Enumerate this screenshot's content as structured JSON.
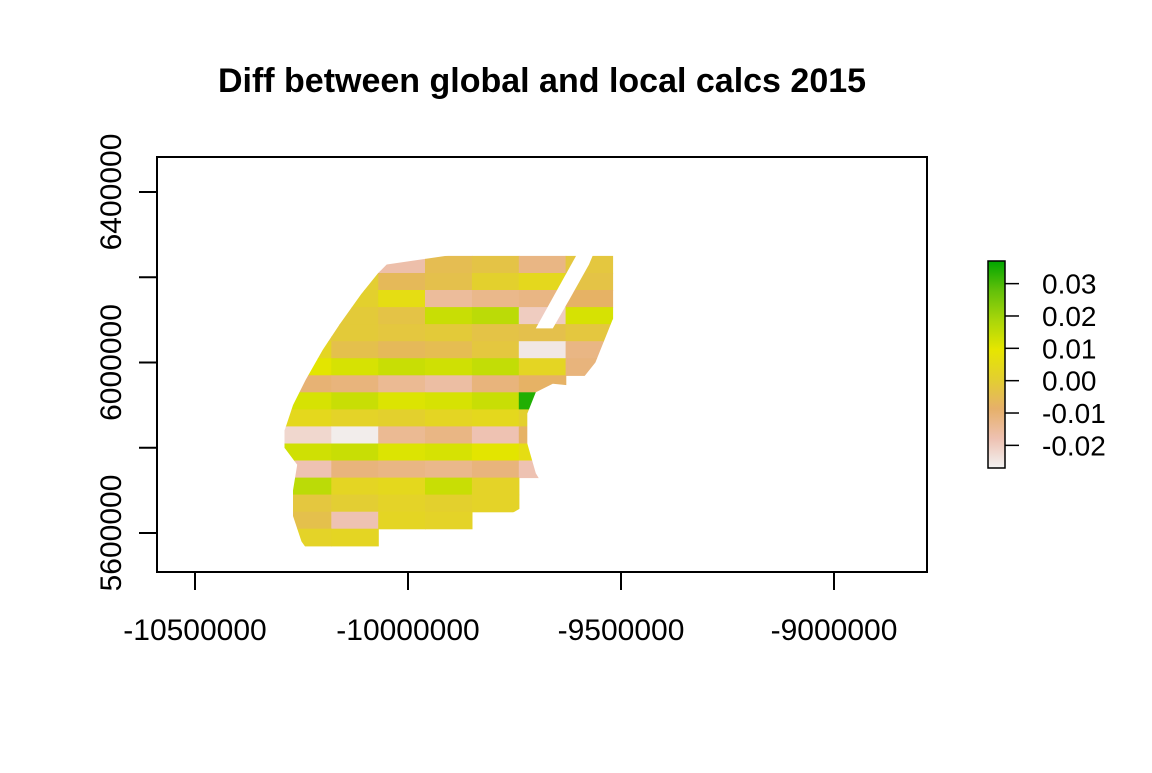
{
  "chart_data": {
    "type": "heatmap",
    "title": "Diff between global and local calcs 2015",
    "xlabel": "",
    "ylabel": "",
    "xlim": [
      -10590000,
      -8780000
    ],
    "ylim": [
      5530000,
      6500000
    ],
    "x_ticks": [
      -10500000,
      -10000000,
      -9500000,
      -9000000
    ],
    "x_tick_labels": [
      "-10500000",
      "-10000000",
      "-9500000",
      "-9000000"
    ],
    "y_ticks": [
      5600000,
      5800000,
      6000000,
      6200000,
      6400000
    ],
    "y_tick_labels": [
      "5600000",
      "",
      "6000000",
      "",
      "6400000"
    ],
    "grid": false,
    "legend": {
      "placement": "right",
      "min": -0.027,
      "max": 0.037,
      "ticks": [
        0.03,
        0.02,
        0.01,
        0.0,
        -0.01,
        -0.02
      ],
      "tick_labels": [
        "0.03",
        "0.02",
        "0.01",
        "0.00",
        "-0.01",
        "-0.02"
      ],
      "colors": [
        "#f2f2f2",
        "#eec1b1",
        "#e6b06a",
        "#e3cf30",
        "#e6e600",
        "#a9d60a",
        "#63c00a",
        "#00a600"
      ]
    },
    "cell_width": 110000,
    "cell_height": 40000,
    "cells": [
      {
        "x": -10070000,
        "y": 6210000,
        "v": -0.017
      },
      {
        "x": -9960000,
        "y": 6210000,
        "v": -0.005
      },
      {
        "x": -9850000,
        "y": 6210000,
        "v": -0.003
      },
      {
        "x": -9740000,
        "y": 6210000,
        "v": -0.012
      },
      {
        "x": -9630000,
        "y": 6210000,
        "v": -0.002
      },
      {
        "x": -10180000,
        "y": 6170000,
        "v": 0.0
      },
      {
        "x": -10070000,
        "y": 6170000,
        "v": -0.006
      },
      {
        "x": -9960000,
        "y": 6170000,
        "v": -0.004
      },
      {
        "x": -9850000,
        "y": 6170000,
        "v": 0.001
      },
      {
        "x": -9740000,
        "y": 6170000,
        "v": 0.004
      },
      {
        "x": -9630000,
        "y": 6170000,
        "v": -0.003
      },
      {
        "x": -10180000,
        "y": 6130000,
        "v": 0.001
      },
      {
        "x": -10070000,
        "y": 6130000,
        "v": 0.006
      },
      {
        "x": -9960000,
        "y": 6130000,
        "v": -0.015
      },
      {
        "x": -9850000,
        "y": 6130000,
        "v": -0.013
      },
      {
        "x": -9740000,
        "y": 6130000,
        "v": -0.012
      },
      {
        "x": -9630000,
        "y": 6130000,
        "v": -0.008
      },
      {
        "x": -10290000,
        "y": 6090000,
        "v": 0.002
      },
      {
        "x": -10180000,
        "y": 6090000,
        "v": -0.001
      },
      {
        "x": -10070000,
        "y": 6090000,
        "v": -0.003
      },
      {
        "x": -9960000,
        "y": 6090000,
        "v": 0.014
      },
      {
        "x": -9850000,
        "y": 6090000,
        "v": 0.016
      },
      {
        "x": -9740000,
        "y": 6090000,
        "v": -0.02
      },
      {
        "x": -9630000,
        "y": 6090000,
        "v": 0.012
      },
      {
        "x": -10290000,
        "y": 6050000,
        "v": -0.002
      },
      {
        "x": -10180000,
        "y": 6050000,
        "v": -0.001
      },
      {
        "x": -10070000,
        "y": 6050000,
        "v": -0.002
      },
      {
        "x": -9960000,
        "y": 6050000,
        "v": -0.001
      },
      {
        "x": -9850000,
        "y": 6050000,
        "v": -0.003
      },
      {
        "x": -9740000,
        "y": 6050000,
        "v": -0.004
      },
      {
        "x": -9630000,
        "y": 6050000,
        "v": -0.002
      },
      {
        "x": -10290000,
        "y": 6010000,
        "v": 0.003
      },
      {
        "x": -10180000,
        "y": 6010000,
        "v": -0.004
      },
      {
        "x": -10070000,
        "y": 6010000,
        "v": -0.006
      },
      {
        "x": -9960000,
        "y": 6010000,
        "v": -0.005
      },
      {
        "x": -9850000,
        "y": 6010000,
        "v": -0.002
      },
      {
        "x": -9740000,
        "y": 6010000,
        "v": -0.025
      },
      {
        "x": -9630000,
        "y": 6010000,
        "v": -0.012
      },
      {
        "x": -10400000,
        "y": 5970000,
        "v": 0.001
      },
      {
        "x": -10290000,
        "y": 5970000,
        "v": 0.01
      },
      {
        "x": -10180000,
        "y": 5970000,
        "v": 0.012
      },
      {
        "x": -10070000,
        "y": 5970000,
        "v": 0.014
      },
      {
        "x": -9960000,
        "y": 5970000,
        "v": 0.013
      },
      {
        "x": -9850000,
        "y": 5970000,
        "v": 0.015
      },
      {
        "x": -9740000,
        "y": 5970000,
        "v": 0.003
      },
      {
        "x": -9630000,
        "y": 5970000,
        "v": -0.011
      },
      {
        "x": -10400000,
        "y": 5930000,
        "v": -0.001
      },
      {
        "x": -10290000,
        "y": 5930000,
        "v": -0.01
      },
      {
        "x": -10180000,
        "y": 5930000,
        "v": -0.011
      },
      {
        "x": -10070000,
        "y": 5930000,
        "v": -0.014
      },
      {
        "x": -9960000,
        "y": 5930000,
        "v": -0.016
      },
      {
        "x": -9850000,
        "y": 5930000,
        "v": -0.011
      },
      {
        "x": -9740000,
        "y": 5930000,
        "v": -0.008
      },
      {
        "x": -10400000,
        "y": 5890000,
        "v": 0.004
      },
      {
        "x": -10290000,
        "y": 5890000,
        "v": 0.012
      },
      {
        "x": -10180000,
        "y": 5890000,
        "v": 0.014
      },
      {
        "x": -10070000,
        "y": 5890000,
        "v": 0.011
      },
      {
        "x": -9960000,
        "y": 5890000,
        "v": 0.012
      },
      {
        "x": -9850000,
        "y": 5890000,
        "v": 0.014
      },
      {
        "x": -9740000,
        "y": 5890000,
        "v": 0.034
      },
      {
        "x": -10400000,
        "y": 5850000,
        "v": 0.003
      },
      {
        "x": -10290000,
        "y": 5850000,
        "v": 0.004
      },
      {
        "x": -10180000,
        "y": 5850000,
        "v": 0.002
      },
      {
        "x": -10070000,
        "y": 5850000,
        "v": 0.001
      },
      {
        "x": -9960000,
        "y": 5850000,
        "v": 0.003
      },
      {
        "x": -9850000,
        "y": 5850000,
        "v": 0.004
      },
      {
        "x": -9740000,
        "y": 5850000,
        "v": 0.001
      },
      {
        "x": -10400000,
        "y": 5810000,
        "v": -0.02
      },
      {
        "x": -10290000,
        "y": 5810000,
        "v": -0.022
      },
      {
        "x": -10180000,
        "y": 5810000,
        "v": -0.026
      },
      {
        "x": -10070000,
        "y": 5810000,
        "v": -0.014
      },
      {
        "x": -9960000,
        "y": 5810000,
        "v": -0.012
      },
      {
        "x": -9850000,
        "y": 5810000,
        "v": -0.018
      },
      {
        "x": -9740000,
        "y": 5810000,
        "v": -0.008
      },
      {
        "x": -10400000,
        "y": 5770000,
        "v": 0.002
      },
      {
        "x": -10290000,
        "y": 5770000,
        "v": 0.013
      },
      {
        "x": -10180000,
        "y": 5770000,
        "v": 0.014
      },
      {
        "x": -10070000,
        "y": 5770000,
        "v": 0.011
      },
      {
        "x": -9960000,
        "y": 5770000,
        "v": 0.012
      },
      {
        "x": -9850000,
        "y": 5770000,
        "v": 0.01
      },
      {
        "x": -9740000,
        "y": 5770000,
        "v": 0.006
      },
      {
        "x": -10400000,
        "y": 5730000,
        "v": -0.012
      },
      {
        "x": -10290000,
        "y": 5730000,
        "v": -0.018
      },
      {
        "x": -10180000,
        "y": 5730000,
        "v": -0.011
      },
      {
        "x": -10070000,
        "y": 5730000,
        "v": -0.012
      },
      {
        "x": -9960000,
        "y": 5730000,
        "v": -0.013
      },
      {
        "x": -9850000,
        "y": 5730000,
        "v": -0.011
      },
      {
        "x": -9740000,
        "y": 5730000,
        "v": -0.018
      },
      {
        "x": -10400000,
        "y": 5690000,
        "v": 0.005
      },
      {
        "x": -10290000,
        "y": 5690000,
        "v": 0.016
      },
      {
        "x": -10180000,
        "y": 5690000,
        "v": 0.003
      },
      {
        "x": -10070000,
        "y": 5690000,
        "v": 0.004
      },
      {
        "x": -9960000,
        "y": 5690000,
        "v": 0.014
      },
      {
        "x": -9850000,
        "y": 5690000,
        "v": 0.002
      },
      {
        "x": -10400000,
        "y": 5650000,
        "v": 0.001
      },
      {
        "x": -10290000,
        "y": 5650000,
        "v": -0.002
      },
      {
        "x": -10180000,
        "y": 5650000,
        "v": 0.0
      },
      {
        "x": -10070000,
        "y": 5650000,
        "v": 0.002
      },
      {
        "x": -9960000,
        "y": 5650000,
        "v": 0.001
      },
      {
        "x": -9850000,
        "y": 5650000,
        "v": 0.002
      },
      {
        "x": -10400000,
        "y": 5610000,
        "v": 0.001
      },
      {
        "x": -10290000,
        "y": 5610000,
        "v": -0.004
      },
      {
        "x": -10180000,
        "y": 5610000,
        "v": -0.018
      },
      {
        "x": -10070000,
        "y": 5610000,
        "v": 0.003
      },
      {
        "x": -9960000,
        "y": 5610000,
        "v": 0.002
      },
      {
        "x": -10400000,
        "y": 5570000,
        "v": 0.001
      },
      {
        "x": -10290000,
        "y": 5570000,
        "v": 0.002
      },
      {
        "x": -10180000,
        "y": 5570000,
        "v": 0.003
      }
    ]
  }
}
